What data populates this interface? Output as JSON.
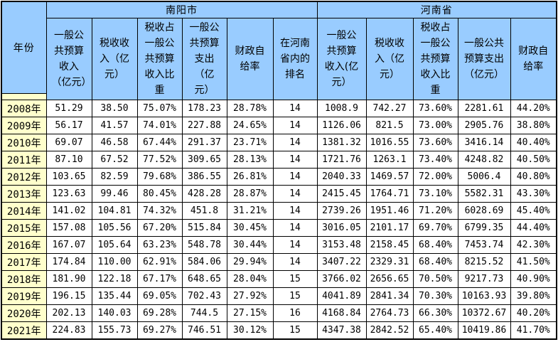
{
  "table": {
    "year_header": "年份",
    "groups": [
      {
        "label": "南阳市"
      },
      {
        "label": "河南省"
      }
    ],
    "columns": [
      {
        "key": "nanyang-income",
        "label": "一般公共预算收入（亿元）"
      },
      {
        "key": "nanyang-tax",
        "label": "税收收入（亿元）"
      },
      {
        "key": "nanyang-tax-ratio",
        "label": "税收占一般公共预算收入比重"
      },
      {
        "key": "nanyang-expenditure",
        "label": "一般公共预算支出（亿元）"
      },
      {
        "key": "nanyang-self-sufficiency",
        "label": "财政自给率"
      },
      {
        "key": "rank-in-henan",
        "label": "在河南省内的排名"
      },
      {
        "key": "henan-income",
        "label": "一般公共预算收入(亿元）"
      },
      {
        "key": "henan-tax",
        "label": "税收收入（亿元）"
      },
      {
        "key": "henan-tax-ratio",
        "label": "税收占一般公共预算收入比重"
      },
      {
        "key": "henan-expenditure",
        "label": "一般公共预算支出（亿元）"
      },
      {
        "key": "henan-self-sufficiency",
        "label": "财政自给率"
      }
    ],
    "rows": [
      {
        "year": "2008年",
        "cells": [
          "51.29",
          "38.50",
          "75.07%",
          "178.23",
          "28.78%",
          "14",
          "1008.9",
          "742.27",
          "73.60%",
          "2281.61",
          "44.20%"
        ]
      },
      {
        "year": "2009年",
        "cells": [
          "56.17",
          "41.57",
          "74.01%",
          "227.88",
          "24.65%",
          "14",
          "1126.06",
          "821.5",
          "73.00%",
          "2905.76",
          "38.80%"
        ]
      },
      {
        "year": "2010年",
        "cells": [
          "69.07",
          "46.58",
          "67.44%",
          "291.37",
          "23.71%",
          "14",
          "1381.32",
          "1016.55",
          "73.60%",
          "3416.14",
          "40.40%"
        ]
      },
      {
        "year": "2011年",
        "cells": [
          "87.10",
          "67.52",
          "77.52%",
          "309.65",
          "28.13%",
          "14",
          "1721.76",
          "1263.1",
          "73.40%",
          "4248.82",
          "40.50%"
        ]
      },
      {
        "year": "2012年",
        "cells": [
          "103.65",
          "82.59",
          "79.68%",
          "386.55",
          "26.81%",
          "14",
          "2040.33",
          "1469.57",
          "72.00%",
          "5006.4",
          "40.80%"
        ]
      },
      {
        "year": "2013年",
        "cells": [
          "123.63",
          "99.46",
          "80.45%",
          "428.28",
          "28.87%",
          "14",
          "2415.45",
          "1764.71",
          "73.10%",
          "5582.31",
          "43.30%"
        ]
      },
      {
        "year": "2014年",
        "cells": [
          "141.02",
          "104.81",
          "74.32%",
          "451.8",
          "31.21%",
          "14",
          "2739.26",
          "1951.46",
          "71.20%",
          "6028.69",
          "45.40%"
        ]
      },
      {
        "year": "2015年",
        "cells": [
          "157.08",
          "105.56",
          "67.20%",
          "515.84",
          "30.45%",
          "14",
          "3016.05",
          "2101.17",
          "69.70%",
          "6799.35",
          "44.40%"
        ]
      },
      {
        "year": "2016年",
        "cells": [
          "167.07",
          "105.64",
          "63.23%",
          "548.78",
          "30.44%",
          "14",
          "3153.48",
          "2158.45",
          "68.40%",
          "7453.74",
          "42.30%"
        ]
      },
      {
        "year": "2017年",
        "cells": [
          "174.84",
          "110.00",
          "62.91%",
          "584.06",
          "29.94%",
          "14",
          "3407.22",
          "2329.31",
          "68.40%",
          "8215.52",
          "41.50%"
        ]
      },
      {
        "year": "2018年",
        "cells": [
          "181.90",
          "122.18",
          "67.17%",
          "648.65",
          "28.04%",
          "15",
          "3766.02",
          "2656.65",
          "70.50%",
          "9217.73",
          "40.90%"
        ]
      },
      {
        "year": "2019年",
        "cells": [
          "196.15",
          "135.44",
          "69.05%",
          "702.43",
          "27.92%",
          "15",
          "4041.89",
          "2841.34",
          "70.30%",
          "10163.93",
          "39.80%"
        ]
      },
      {
        "year": "2020年",
        "cells": [
          "202.13",
          "140.03",
          "69.28%",
          "744.5",
          "27.15%",
          "16",
          "4168.84",
          "2764.73",
          "66.30%",
          "10372.67",
          "40.20%"
        ]
      },
      {
        "year": "2021年",
        "cells": [
          "224.83",
          "155.73",
          "69.27%",
          "746.51",
          "30.12%",
          "15",
          "4347.38",
          "2842.52",
          "65.40%",
          "10419.86",
          "41.70%"
        ]
      }
    ]
  },
  "colors": {
    "header_bg": "#99CCFF",
    "year_bg": "#FFFFCC",
    "cell_bg": "#FFFFFF",
    "border": "#000000"
  }
}
